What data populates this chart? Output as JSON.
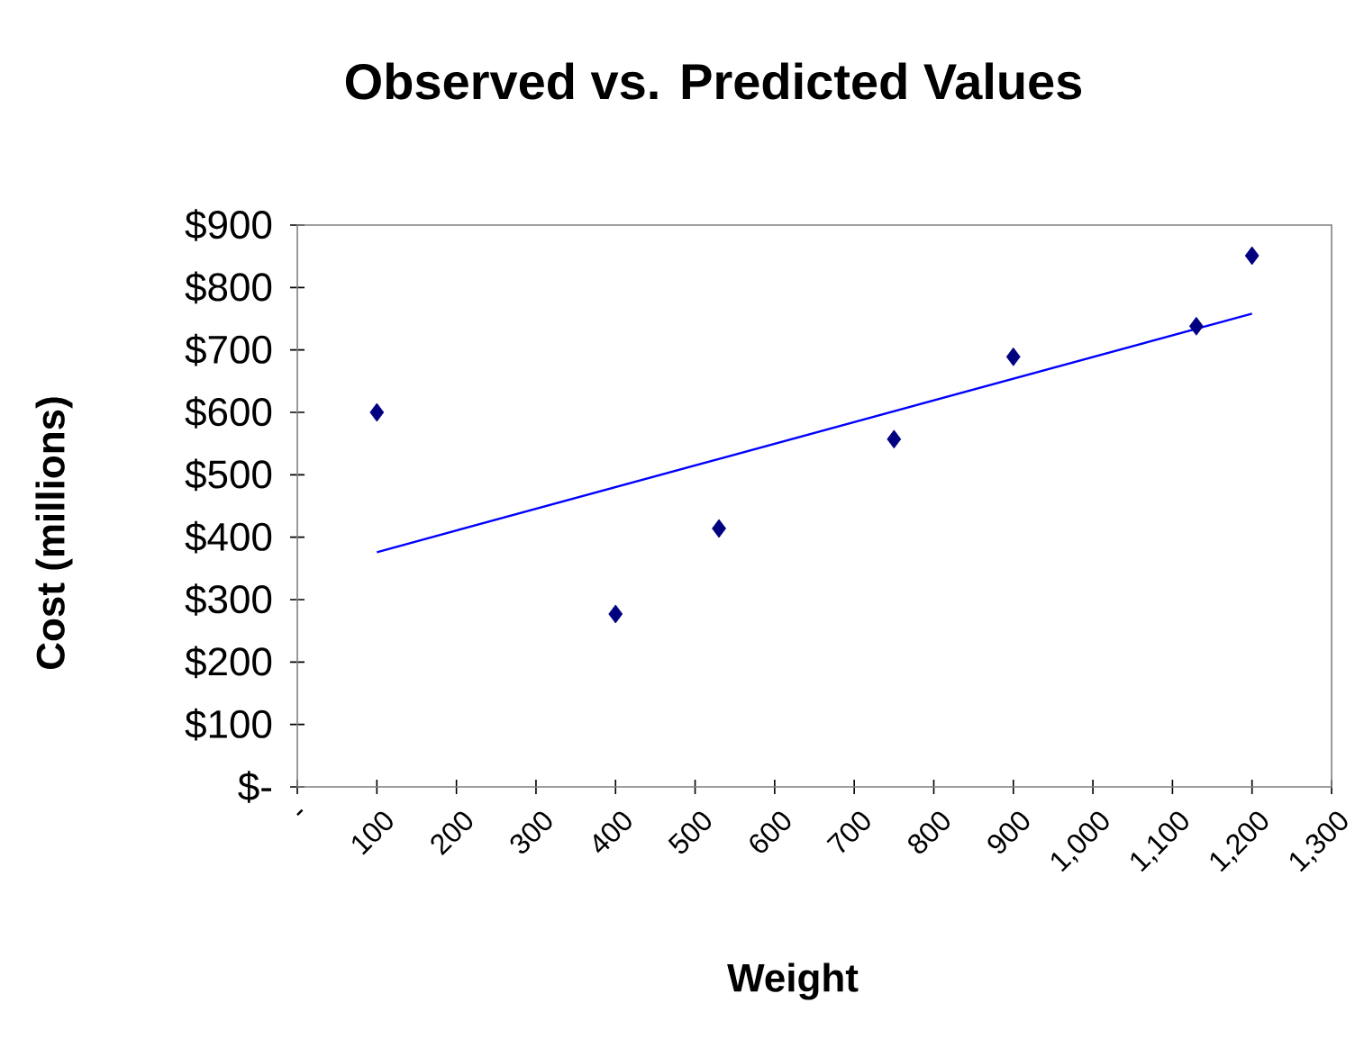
{
  "chart_data": {
    "type": "scatter",
    "title": "Observed vs. Predicted Values",
    "xlabel": "Weight",
    "ylabel": "Cost (millions)",
    "xlim": [
      0,
      1300
    ],
    "xticks": [
      {
        "value": 0,
        "label": "-"
      },
      100,
      200,
      300,
      400,
      500,
      600,
      700,
      800,
      900,
      {
        "value": 1000,
        "label": "1,000"
      },
      {
        "value": 1100,
        "label": "1,100"
      },
      {
        "value": 1200,
        "label": "1,200"
      },
      {
        "value": 1300,
        "label": "1,300"
      }
    ],
    "ylim": [
      0,
      900
    ],
    "yticks": [
      {
        "value": 0,
        "label": "$-"
      },
      {
        "value": 100,
        "label": "$100"
      },
      {
        "value": 200,
        "label": "$200"
      },
      {
        "value": 300,
        "label": "$300"
      },
      {
        "value": 400,
        "label": "$400"
      },
      {
        "value": 500,
        "label": "$500"
      },
      {
        "value": 600,
        "label": "$600"
      },
      {
        "value": 700,
        "label": "$700"
      },
      {
        "value": 800,
        "label": "$800"
      },
      {
        "value": 900,
        "label": "$900"
      }
    ],
    "grid": false,
    "series": [
      {
        "color": "#000080",
        "marker": "diamond",
        "x": [
          100,
          400,
          530,
          750,
          900,
          1130,
          1200
        ],
        "values": [
          600,
          277,
          414,
          557,
          689,
          738,
          851
        ]
      },
      {
        "type": "line",
        "color": "#0000ff",
        "marker": "none",
        "line_style": "solid",
        "x": [
          100,
          1200
        ],
        "values": [
          376,
          758
        ]
      }
    ]
  }
}
